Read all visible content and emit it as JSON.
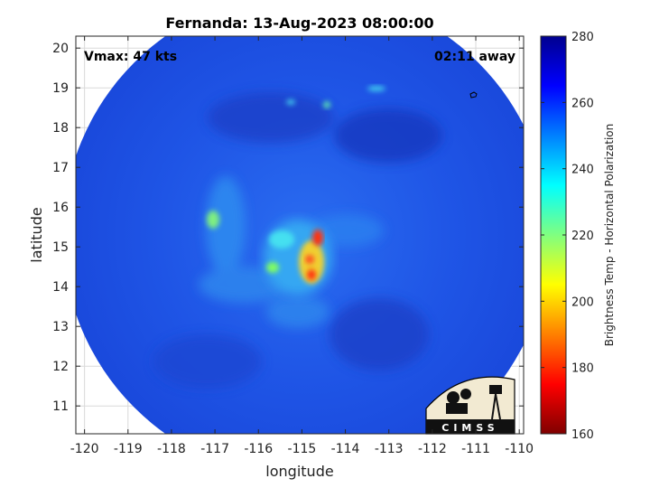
{
  "chart_data": {
    "type": "heatmap",
    "title": "Fernanda: 13-Aug-2023 08:00:00",
    "xlabel": "longitude",
    "ylabel": "latitude",
    "xlim": [
      -120.2,
      -109.9
    ],
    "ylim": [
      10.3,
      20.3
    ],
    "xticks": [
      -120,
      -119,
      -118,
      -117,
      -116,
      -115,
      -114,
      -113,
      -112,
      -111,
      -110
    ],
    "yticks": [
      11,
      12,
      13,
      14,
      15,
      16,
      17,
      18,
      19,
      20
    ],
    "grid": true,
    "annotations": {
      "vmax": "Vmax: 47 kts",
      "away": "02:11 away"
    },
    "colorbar": {
      "label": "Brightness Temp - Horizontal Polarization",
      "range": [
        160,
        280
      ],
      "ticks": [
        160,
        180,
        200,
        220,
        240,
        260,
        280
      ],
      "colormap": [
        "#7f0000",
        "#ff0000",
        "#ff8000",
        "#ffff00",
        "#80ff80",
        "#00ffff",
        "#0080ff",
        "#0000ff",
        "#00008f"
      ]
    },
    "swath": {
      "center": [
        -114.9,
        15.3
      ],
      "radius_deg": 5.6
    },
    "storm_center": [
      -114.8,
      14.9
    ],
    "logo": "CIMSS"
  }
}
